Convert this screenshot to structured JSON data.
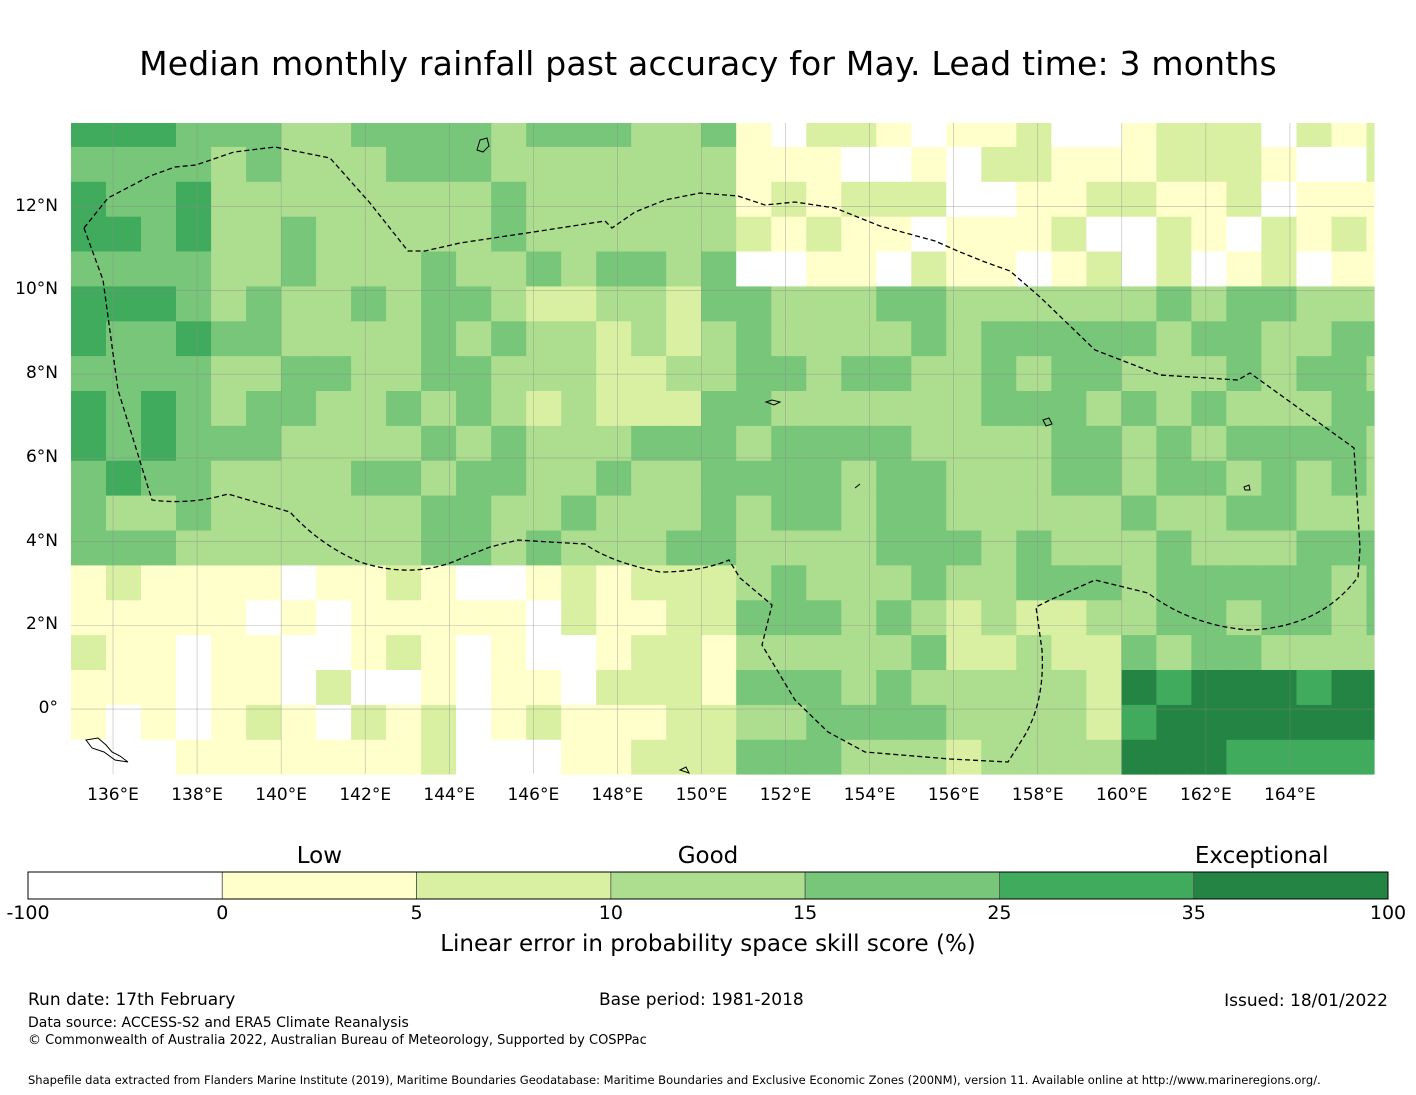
{
  "title": "Median monthly rainfall past accuracy for May. Lead time: 3 months",
  "map": {
    "lon_range": [
      135.0,
      166.0
    ],
    "lat_range": [
      -1.55,
      14.0
    ],
    "cell_size_deg": 0.833,
    "lon_ticks": [
      "136°E",
      "138°E",
      "140°E",
      "142°E",
      "144°E",
      "146°E",
      "148°E",
      "150°E",
      "152°E",
      "154°E",
      "156°E",
      "158°E",
      "160°E",
      "162°E",
      "164°E"
    ],
    "lat_ticks": [
      "12°N",
      "10°N",
      "8°N",
      "6°N",
      "4°N",
      "2°N",
      "0°"
    ],
    "region_boundary": "Federated States of Micronesia EEZ",
    "skill_classes": [
      "<0",
      "0-5",
      "5-10",
      "10-15",
      "15-25",
      "25-35",
      ">35"
    ]
  },
  "legend": {
    "category_labels": [
      {
        "name": "low",
        "text": "Low"
      },
      {
        "name": "good",
        "text": "Good"
      },
      {
        "name": "exceptional",
        "text": "Exceptional"
      }
    ],
    "bins": [
      {
        "from": -100,
        "to": 0,
        "color": "#ffffff"
      },
      {
        "from": 0,
        "to": 5,
        "color": "#ffffcc"
      },
      {
        "from": 5,
        "to": 10,
        "color": "#d9f0a3"
      },
      {
        "from": 10,
        "to": 15,
        "color": "#addd8e"
      },
      {
        "from": 15,
        "to": 25,
        "color": "#78c679"
      },
      {
        "from": 25,
        "to": 35,
        "color": "#41ab5d"
      },
      {
        "from": 35,
        "to": 100,
        "color": "#238443"
      }
    ],
    "tick_labels": [
      "-100",
      "0",
      "5",
      "10",
      "15",
      "25",
      "35",
      "100"
    ],
    "title": "Linear error in probability space skill score (%)"
  },
  "footer": {
    "run_date": "Run date: 17th February",
    "base_period": "Base period: 1981-2018",
    "issued": "Issued: 18/01/2022",
    "data_source": "Data source: ACCESS-S2 and ERA5 Climate Reanalysis",
    "copyright": "© Commonwealth of Australia 2022, Australian Bureau of Meteorology, Supported by COSPPac",
    "shapefile_note": "Shapefile data extracted from Flanders Marine Institute (2019), Maritime Boundaries Geodatabase: Maritime Boundaries and Exclusive Economic Zones (200NM), version 11. Available online at http://www.marineregions.org/."
  }
}
